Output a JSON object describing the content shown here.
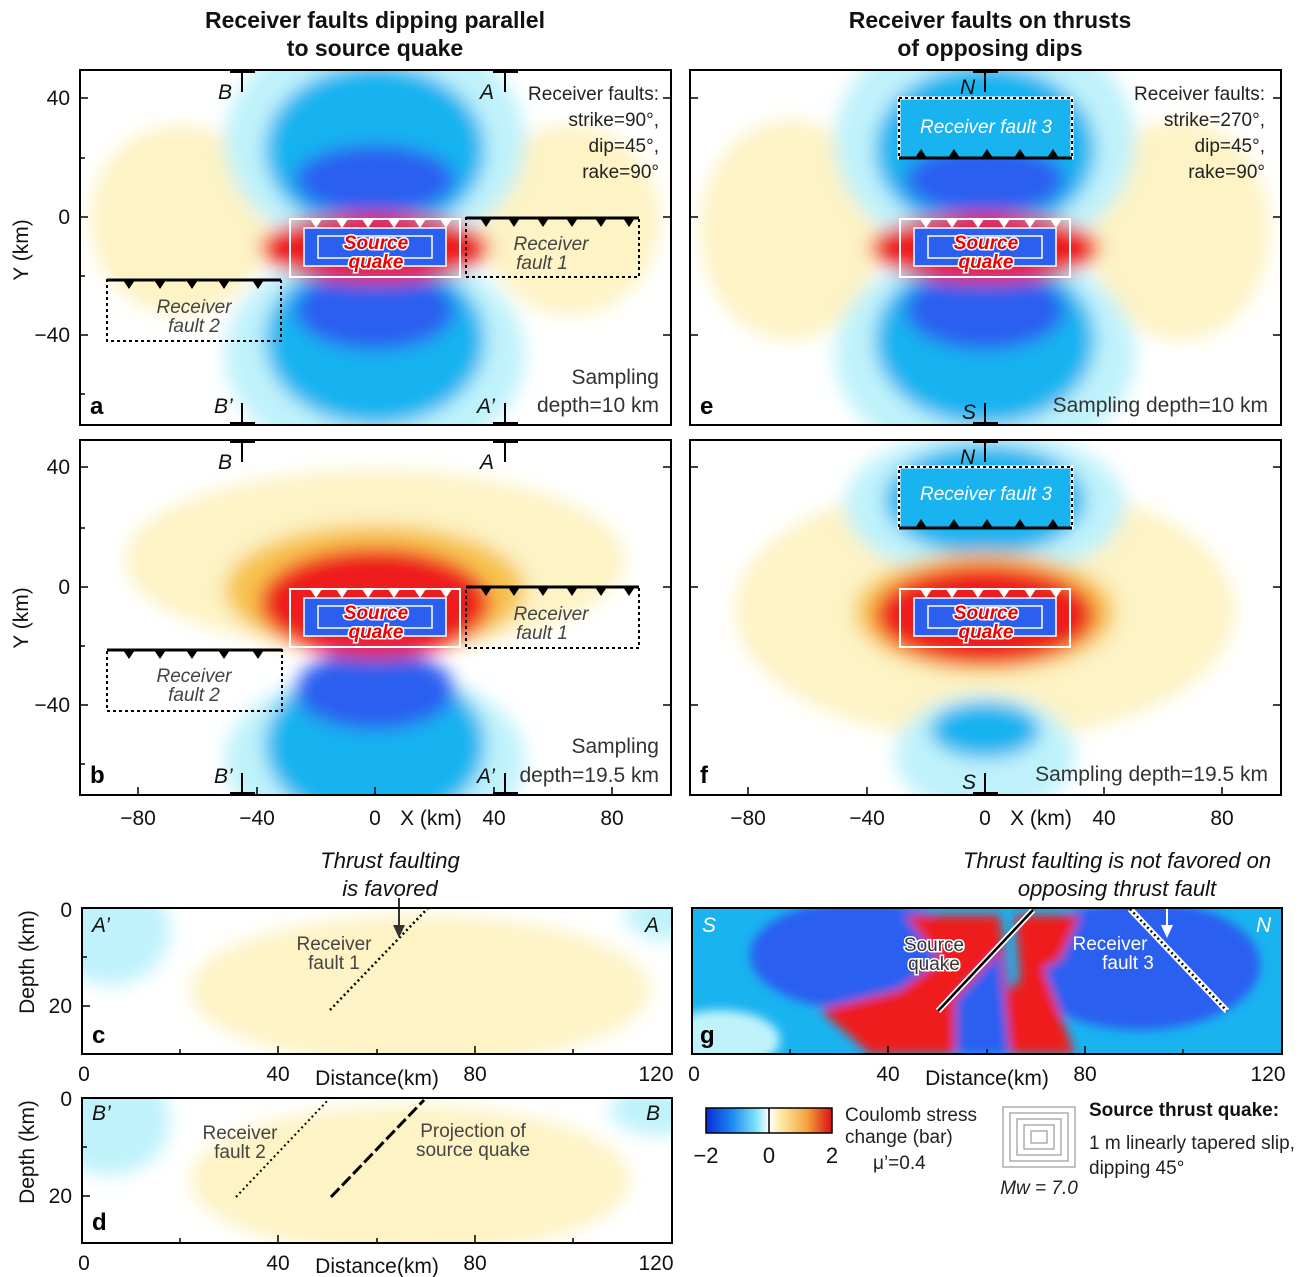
{
  "titles": {
    "left_line1": "Receiver faults dipping parallel",
    "left_line2": "to source quake",
    "right_line1": "Receiver faults on thrusts",
    "right_line2": "of opposing dips"
  },
  "axes": {
    "y_label": "Y (km)",
    "y_ticks": [
      "40",
      "0",
      "−40"
    ],
    "x_ticks": [
      "−80",
      "−40",
      "0",
      "40",
      "80"
    ],
    "x_label": "X (km)",
    "depth_label": "Depth (km)",
    "depth_ticks": [
      "0",
      "20"
    ],
    "dist_label": "Distance(km)",
    "dist_ticks": [
      "0",
      "40",
      "80",
      "120"
    ]
  },
  "panels": {
    "a": {
      "letter": "a",
      "sampling_line1": "Sampling",
      "sampling_line2": "depth=10 km"
    },
    "b": {
      "letter": "b",
      "sampling_line1": "Sampling",
      "sampling_line2": "depth=19.5 km"
    },
    "c": {
      "letter": "c"
    },
    "d": {
      "letter": "d"
    },
    "e": {
      "letter": "e",
      "sampling": "Sampling depth=10 km"
    },
    "f": {
      "letter": "f",
      "sampling": "Sampling depth=19.5 km"
    },
    "g": {
      "letter": "g"
    }
  },
  "sections": {
    "A": "A",
    "A_prime": "A’",
    "B": "B",
    "B_prime": "B’",
    "N": "N",
    "S": "S"
  },
  "receiver_info_left": [
    "Receiver faults:",
    "strike=90°,",
    "dip=45°,",
    "rake=90°"
  ],
  "receiver_info_right": [
    "Receiver faults:",
    "strike=270°,",
    "dip=45°,",
    "rake=90°"
  ],
  "labels": {
    "source_quake_1": "Source",
    "source_quake_2": "quake",
    "receiver_fault_1_l1": "Receiver",
    "receiver_fault_1_l2": "fault 1",
    "receiver_fault_2_l1": "Receiver",
    "receiver_fault_2_l2": "fault 2",
    "receiver_fault_3": "Receiver fault 3",
    "receiver_fault_3_l2": "fault 3",
    "projection_l1": "Projection of",
    "projection_l2": "source quake"
  },
  "annotations": {
    "c_line1": "Thrust faulting",
    "c_line2": "is favored",
    "g_line1": "Thrust faulting is not favored on",
    "g_line2": "opposing thrust fault"
  },
  "legend": {
    "colorbar_title_l1": "Coulomb stress",
    "colorbar_title_l2": "change (bar)",
    "colorbar_min": "−2",
    "colorbar_mid": "0",
    "colorbar_max": "2",
    "friction": "μ’=0.4",
    "source_title": "Source thrust quake:",
    "source_desc_l1": "1 m linearly tapered slip,",
    "source_desc_l2": "dipping 45°",
    "magnitude": "Mw = 7.0"
  },
  "colors": {
    "neg_strong": "#2a5ff0",
    "neg_mid": "#19b3f0",
    "neg_weak": "#bff2fb",
    "pos_weak": "#fdf3c4",
    "pos_mid": "#f7c24e",
    "pos_strong": "#ee1c1c"
  }
}
